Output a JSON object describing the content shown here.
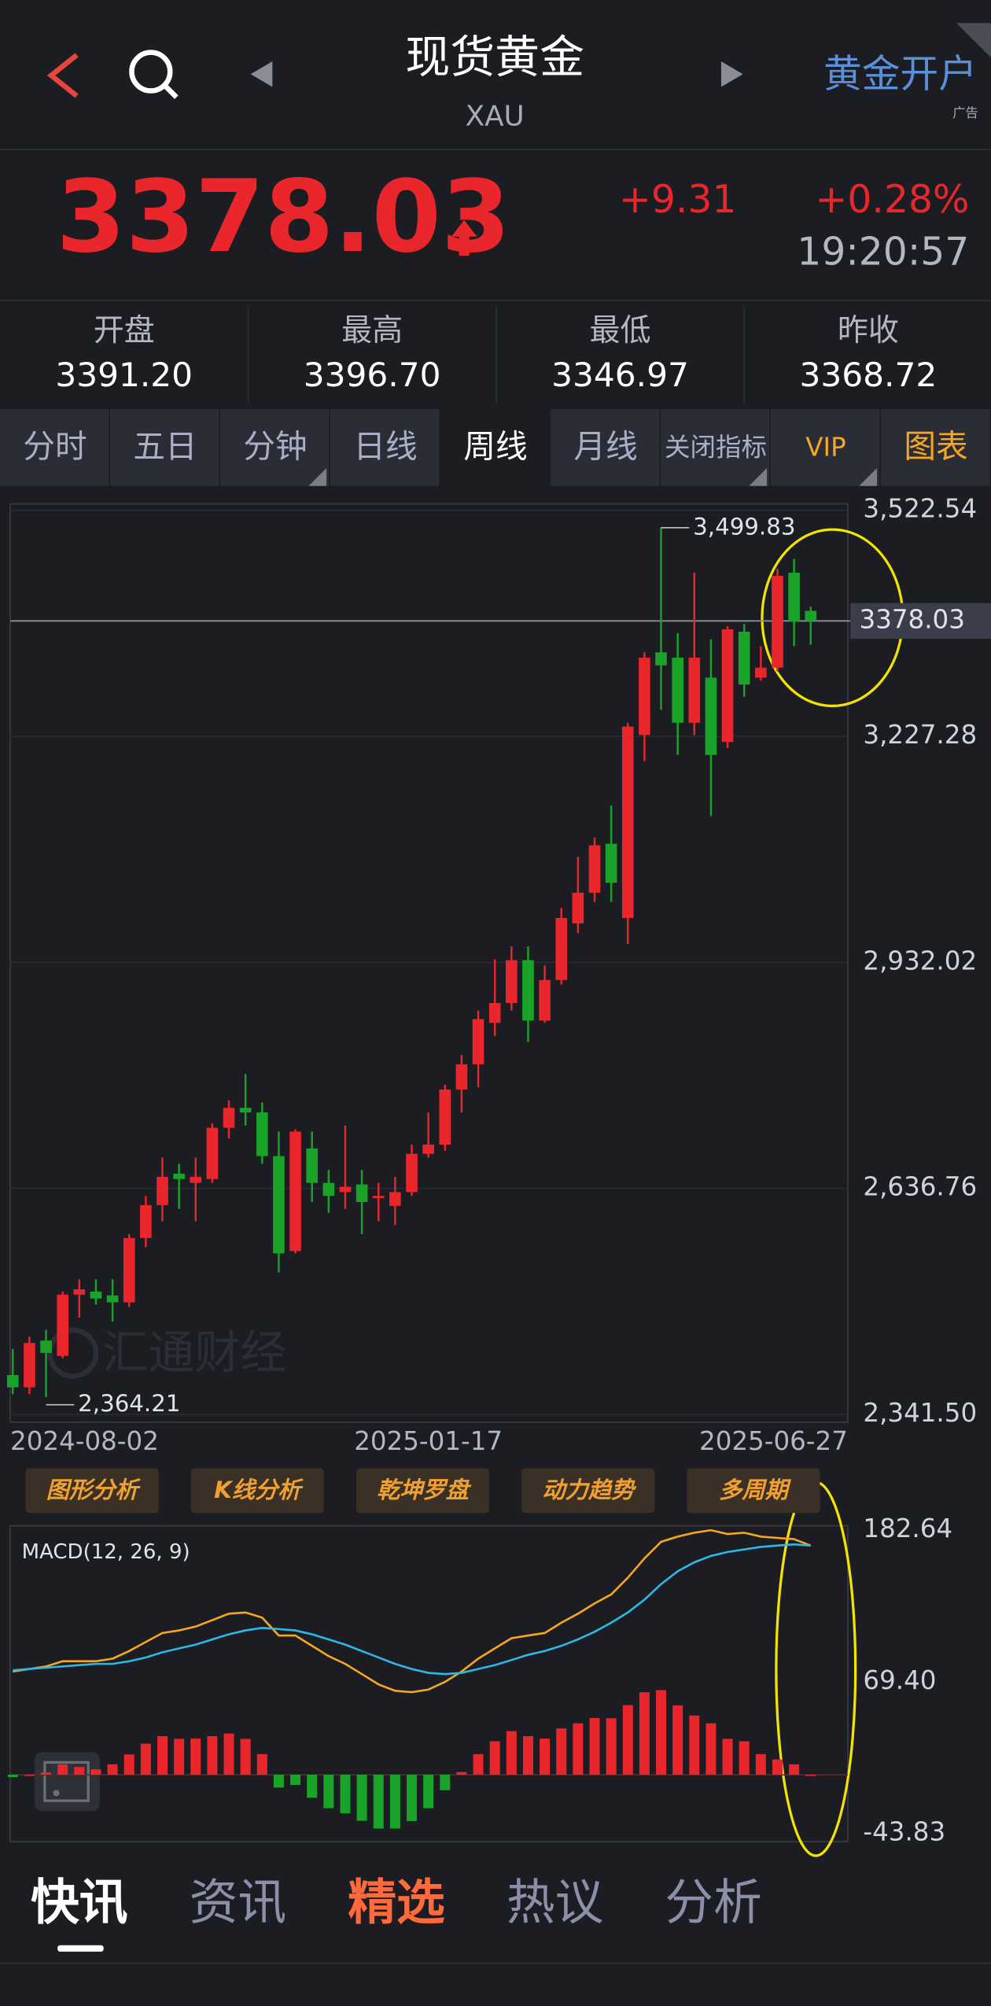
{
  "header": {
    "title": "现货黄金",
    "symbol": "XAU",
    "account_button": "黄金开户",
    "ad_tag": "广告"
  },
  "quote": {
    "price": "3378.03",
    "change": "+9.31",
    "change_percent": "+0.28%",
    "time": "19:20:57"
  },
  "stats": [
    {
      "label": "开盘",
      "value": "3391.20"
    },
    {
      "label": "最高",
      "value": "3396.70"
    },
    {
      "label": "最低",
      "value": "3346.97"
    },
    {
      "label": "昨收",
      "value": "3368.72"
    }
  ],
  "period_tabs": [
    "分时",
    "五日",
    "分钟",
    "日线",
    "周线",
    "月线",
    "关闭指标",
    "VIP",
    "图表"
  ],
  "selected_tab": 4,
  "accent_tabs": [
    7,
    8
  ],
  "accent_color": "#f5a623",
  "chart_data": [
    {
      "type": "candlestick",
      "up_color": "#e8262c",
      "down_color": "#1aa329",
      "grid": true,
      "categories": [
        null,
        "2024-08-02",
        null,
        null,
        null,
        null,
        null,
        null,
        null,
        null,
        null,
        null,
        null,
        null,
        null,
        null,
        null,
        null,
        null,
        null,
        null,
        null,
        null,
        null,
        null,
        "2025-01-17",
        null,
        null,
        null,
        null,
        null,
        null,
        null,
        null,
        null,
        null,
        null,
        null,
        null,
        null,
        null,
        null,
        null,
        null,
        null,
        null,
        null,
        null,
        "2025-06-27"
      ],
      "open": [
        2393,
        2377,
        2438,
        2418,
        2498,
        2502,
        2497,
        2488,
        2572,
        2615,
        2656,
        2644,
        2649,
        2716,
        2742,
        2736,
        2679,
        2555,
        2689,
        2644,
        2632,
        2642,
        2624,
        2614,
        2632,
        2682,
        2694,
        2766,
        2799,
        2853,
        2879,
        2935,
        2856,
        2909,
        2983,
        3023,
        3087,
        2990,
        3229,
        3337,
        3330,
        3245,
        3304,
        3220,
        3364,
        3304,
        3317,
        3441,
        3391.2
      ],
      "high": [
        2427,
        2443,
        2452,
        2502,
        2518,
        2518,
        2518,
        2577,
        2627,
        2677,
        2669,
        2677,
        2722,
        2752,
        2786,
        2749,
        2711,
        2714,
        2711,
        2661,
        2719,
        2661,
        2644,
        2652,
        2694,
        2736,
        2772,
        2811,
        2869,
        2936,
        2953,
        2953,
        2928,
        3003,
        3070,
        3095,
        3137,
        3245,
        3337,
        3499.83,
        3362,
        3441,
        3354,
        3371,
        3374,
        3345,
        3446,
        3459,
        3396.7
      ],
      "low": [
        2368,
        2368,
        2364.21,
        2415,
        2468,
        2485,
        2463,
        2482,
        2560,
        2594,
        2610,
        2594,
        2644,
        2702,
        2719,
        2669,
        2527,
        2552,
        2619,
        2605,
        2610,
        2577,
        2594,
        2589,
        2627,
        2677,
        2686,
        2736,
        2769,
        2836,
        2869,
        2828,
        2853,
        2903,
        2970,
        3011,
        3011,
        2956,
        3195,
        3262,
        3203,
        3229,
        3123,
        3212,
        3279,
        3300,
        3312,
        3345,
        3346.97
      ],
      "close": [
        2377,
        2435,
        2422,
        2498,
        2505,
        2493,
        2488,
        2572,
        2615,
        2652,
        2649,
        2652,
        2716,
        2742,
        2736,
        2679,
        2552,
        2711,
        2644,
        2627,
        2639,
        2619,
        2627,
        2632,
        2682,
        2694,
        2766,
        2799,
        2858,
        2879,
        2935,
        2856,
        2909,
        2990,
        3023,
        3085,
        3036,
        3240,
        3330,
        3320,
        3245,
        3330,
        3203,
        3367,
        3295,
        3317,
        3437,
        3377,
        3378.03
      ],
      "ylim": [
        2341.5,
        3522.54
      ],
      "yticks": [
        {
          "value": 3522.54,
          "label": "3,522.54"
        },
        {
          "value": 3227.28,
          "label": "3,227.28"
        },
        {
          "value": 2932.02,
          "label": "2,932.02"
        },
        {
          "value": 2636.76,
          "label": "2,636.76"
        },
        {
          "value": 2341.5,
          "label": "2,341.50"
        }
      ],
      "price_line": 3378.03,
      "annotations": [
        {
          "value": 3499.83,
          "label": "3,499.83"
        },
        {
          "value": 2364.21,
          "label": "2,364.21"
        }
      ]
    },
    {
      "type": "macd",
      "title": "MACD(12, 26, 9)",
      "up_color": "#e8262c",
      "down_color": "#1aa329",
      "series": [
        {
          "color": "#f5a623",
          "values": [
            77.1,
            79.0,
            80.9,
            84.8,
            84.8,
            84.8,
            86.7,
            92.4,
            99.2,
            105.9,
            107.8,
            110.7,
            115.5,
            120.3,
            121.2,
            117.4,
            104.0,
            104.0,
            96.3,
            88.6,
            82.8,
            75.2,
            67.5,
            62.7,
            61.7,
            63.6,
            69.4,
            77.1,
            86.7,
            94.4,
            102.0,
            104.0,
            105.9,
            113.6,
            120.3,
            128.0,
            134.7,
            147.2,
            161.6,
            174.0,
            177.9,
            180.8,
            182.7,
            179.8,
            180.8,
            177.9,
            176.9,
            176.0,
            171.2
          ]
        },
        {
          "color": "#2eb8e6",
          "values": [
            78.0,
            79.0,
            80.0,
            80.9,
            81.9,
            82.8,
            82.8,
            84.8,
            87.6,
            91.5,
            94.4,
            97.2,
            101.1,
            104.9,
            107.8,
            109.7,
            108.8,
            107.8,
            104.9,
            101.1,
            97.2,
            92.4,
            87.6,
            82.8,
            79.0,
            76.1,
            75.2,
            76.1,
            79.0,
            81.9,
            85.7,
            89.6,
            92.4,
            96.3,
            101.1,
            106.8,
            113.6,
            121.2,
            130.8,
            142.4,
            152.0,
            158.7,
            163.5,
            166.4,
            168.3,
            170.2,
            171.2,
            172.1,
            171.2
          ]
        },
        {
          "values": [
            -1.8,
            0,
            1.8,
            7.8,
            5.8,
            4.0,
            7.8,
            15.2,
            23.2,
            28.8,
            26.8,
            27.0,
            28.8,
            30.8,
            26.8,
            15.4,
            -9.6,
            -7.6,
            -17.2,
            -25.0,
            -28.8,
            -34.4,
            -40.2,
            -40.2,
            -34.6,
            -25.0,
            -11.6,
            2.0,
            15.4,
            25.0,
            32.6,
            28.8,
            27.0,
            34.6,
            38.4,
            42.4,
            42.2,
            52.0,
            61.6,
            63.2,
            51.8,
            44.2,
            38.4,
            26.8,
            25.0,
            15.4,
            11.4,
            7.8,
            0
          ]
        }
      ],
      "ylim": [
        -50,
        186
      ],
      "yticks": [
        182.64,
        {
          "value": 69.4,
          "label": "69.40"
        },
        -43.83
      ]
    }
  ],
  "watermark": "汇通财经",
  "tool_buttons": [
    "图形分析",
    "K线分析",
    "乾坤罗盘",
    "动力趋势",
    "多周期"
  ],
  "news_tabs": [
    "快讯",
    "资讯",
    "精选",
    "热议",
    "分析"
  ],
  "news_selected": 0,
  "news_accent": 2,
  "news_accent_color": "#ff6a3d"
}
